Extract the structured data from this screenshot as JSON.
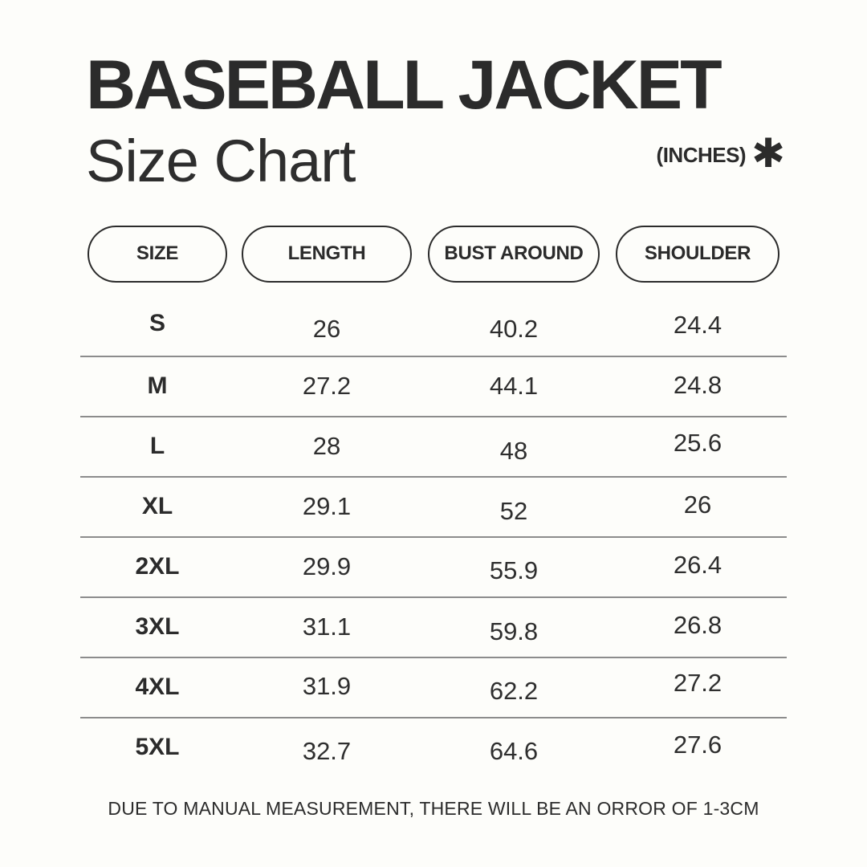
{
  "header": {
    "title": "BASEBALL JACKET",
    "subtitle": "Size Chart",
    "units_label": "(INCHES)",
    "asterisk_glyph": "✱"
  },
  "chart_data": {
    "type": "table",
    "title": "BASEBALL JACKET Size Chart",
    "units": "inches",
    "columns": [
      "SIZE",
      "LENGTH",
      "BUST AROUND",
      "SHOULDER"
    ],
    "rows": [
      [
        "S",
        "26",
        "40.2",
        "24.4"
      ],
      [
        "M",
        "27.2",
        "44.1",
        "24.8"
      ],
      [
        "L",
        "28",
        "48",
        "25.6"
      ],
      [
        "XL",
        "29.1",
        "52",
        "26"
      ],
      [
        "2XL",
        "29.9",
        "55.9",
        "26.4"
      ],
      [
        "3XL",
        "31.1",
        "59.8",
        "26.8"
      ],
      [
        "4XL",
        "31.9",
        "62.2",
        "27.2"
      ],
      [
        "5XL",
        "32.7",
        "64.6",
        "27.6"
      ]
    ]
  },
  "footer": {
    "note": "DUE TO MANUAL MEASUREMENT, THERE WILL BE AN ORROR OF 1-3CM"
  },
  "colors": {
    "background": "#fdfdfa",
    "text": "#2b2b2b",
    "separator": "#8c8c8c"
  }
}
